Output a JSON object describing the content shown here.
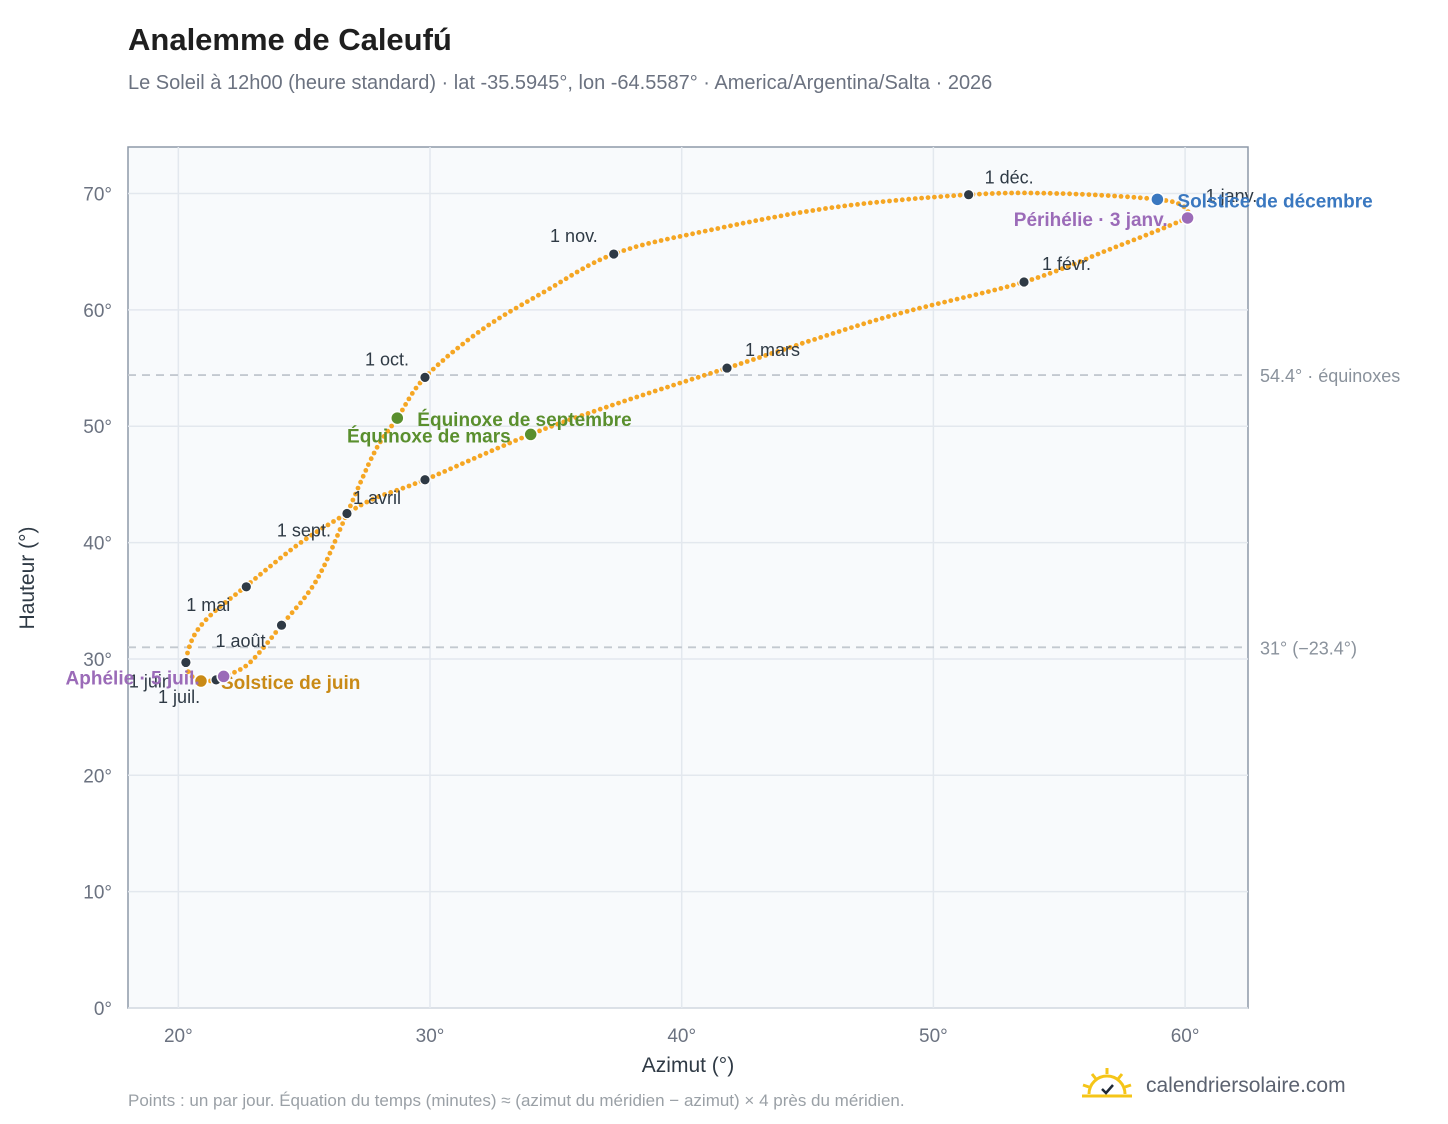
{
  "header": {
    "title": "Analemme de Caleufú",
    "subtitle": "Le Soleil à 12h00 (heure standard) · lat -35.5945°, lon -64.5587° · America/Argentina/Salta · 2026"
  },
  "footer": {
    "note": "Points : un par jour. Équation du temps (minutes) ≈ (azimut du méridien − azimut) × 4 près du méridien.",
    "brand": "calendriersolaire.com"
  },
  "colors": {
    "curve": "#f5a623",
    "month_point": "#2f3a45",
    "solstice_june": "#c98a16",
    "solstice_december": "#3a78c0",
    "equinox": "#5a8f2e",
    "apsis": "#9b6bb8",
    "reference_line": "#c3c9d0",
    "plot_bg": "#f8fafc",
    "grid": "#e3e8ee"
  },
  "chart_data": {
    "type": "scatter",
    "title": "Analemme de Caleufú",
    "xlabel": "Azimut (°)",
    "ylabel": "Hauteur (°)",
    "xlim": [
      18,
      62.5
    ],
    "ylim": [
      0,
      74
    ],
    "x_ticks": [
      20,
      30,
      40,
      50,
      60
    ],
    "y_ticks": [
      0,
      10,
      20,
      30,
      40,
      50,
      60,
      70
    ],
    "x_tick_labels": [
      "20°",
      "30°",
      "40°",
      "50°",
      "60°"
    ],
    "y_tick_labels": [
      "0°",
      "10°",
      "20°",
      "30°",
      "40°",
      "50°",
      "60°",
      "70°"
    ],
    "grid": true,
    "reference_lines": [
      {
        "y": 54.4,
        "label": "54.4° · équinoxes"
      },
      {
        "y": 31,
        "label": "31° (−23.4°)"
      }
    ],
    "series": [
      {
        "points_per_day": 1,
        "path": [
          {
            "x": 60.1,
            "y": 67.9
          },
          {
            "x": 59.0,
            "y": 66.9
          },
          {
            "x": 57.0,
            "y": 65.2
          },
          {
            "x": 53.6,
            "y": 62.4
          },
          {
            "x": 48.0,
            "y": 59.3
          },
          {
            "x": 41.8,
            "y": 55.0
          },
          {
            "x": 37.5,
            "y": 52.0
          },
          {
            "x": 34.0,
            "y": 49.3
          },
          {
            "x": 29.8,
            "y": 45.4
          },
          {
            "x": 27.8,
            "y": 43.8
          },
          {
            "x": 26.7,
            "y": 42.5
          },
          {
            "x": 24.8,
            "y": 39.9
          },
          {
            "x": 22.6,
            "y": 36.1
          },
          {
            "x": 21.3,
            "y": 33.8
          },
          {
            "x": 20.6,
            "y": 31.9
          },
          {
            "x": 20.3,
            "y": 29.7
          },
          {
            "x": 20.5,
            "y": 28.6
          },
          {
            "x": 20.9,
            "y": 28.1
          },
          {
            "x": 21.5,
            "y": 28.2
          },
          {
            "x": 21.8,
            "y": 28.5
          },
          {
            "x": 22.8,
            "y": 29.6
          },
          {
            "x": 24.1,
            "y": 32.9
          },
          {
            "x": 25.5,
            "y": 36.8
          },
          {
            "x": 26.7,
            "y": 42.5
          },
          {
            "x": 27.8,
            "y": 47.8
          },
          {
            "x": 28.7,
            "y": 50.7
          },
          {
            "x": 29.8,
            "y": 54.2
          },
          {
            "x": 32.0,
            "y": 58.2
          },
          {
            "x": 34.5,
            "y": 61.5
          },
          {
            "x": 37.3,
            "y": 64.8
          },
          {
            "x": 41.0,
            "y": 66.8
          },
          {
            "x": 46.0,
            "y": 68.8
          },
          {
            "x": 51.4,
            "y": 69.9
          },
          {
            "x": 55.0,
            "y": 70.0
          },
          {
            "x": 58.9,
            "y": 69.5
          },
          {
            "x": 60.0,
            "y": 68.8
          },
          {
            "x": 60.1,
            "y": 67.9
          }
        ]
      }
    ],
    "month_markers": [
      {
        "label": "1 janv.",
        "x": 60.1,
        "y": 67.9
      },
      {
        "label": "1 févr.",
        "x": 53.6,
        "y": 62.4
      },
      {
        "label": "1 mars",
        "x": 41.8,
        "y": 55.0
      },
      {
        "label": "1 avril",
        "x": 29.8,
        "y": 45.4
      },
      {
        "label": "1 mai",
        "x": 22.7,
        "y": 36.2
      },
      {
        "label": "1 juin",
        "x": 20.3,
        "y": 29.7
      },
      {
        "label": "1 juil.",
        "x": 21.5,
        "y": 28.2
      },
      {
        "label": "1 août",
        "x": 24.1,
        "y": 32.9
      },
      {
        "label": "1 sept.",
        "x": 26.7,
        "y": 42.5
      },
      {
        "label": "1 oct.",
        "x": 29.8,
        "y": 54.2
      },
      {
        "label": "1 nov.",
        "x": 37.3,
        "y": 64.8
      },
      {
        "label": "1 déc.",
        "x": 51.4,
        "y": 69.9
      }
    ],
    "events": [
      {
        "label": "Solstice de juin",
        "x": 20.9,
        "y": 28.1,
        "kind": "solstice_june"
      },
      {
        "label": "Solstice de décembre",
        "x": 58.9,
        "y": 69.5,
        "kind": "solstice_december"
      },
      {
        "label": "Équinoxe de mars",
        "x": 34.0,
        "y": 49.3,
        "kind": "equinox"
      },
      {
        "label": "Équinoxe de septembre",
        "x": 28.7,
        "y": 50.7,
        "kind": "equinox"
      },
      {
        "label": "Aphélie · 5 juil.",
        "x": 21.8,
        "y": 28.5,
        "kind": "apsis"
      },
      {
        "label": "Périhélie · 3 janv.",
        "x": 60.1,
        "y": 67.9,
        "kind": "apsis"
      }
    ]
  }
}
